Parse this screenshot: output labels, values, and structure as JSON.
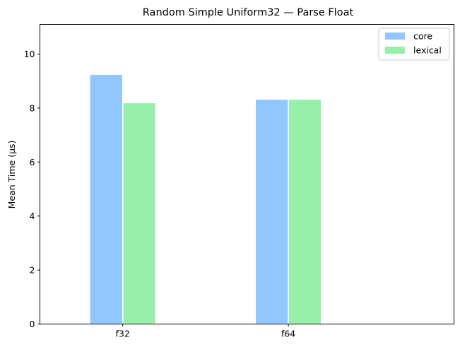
{
  "chart_data": {
    "type": "bar",
    "title": "Random Simple Uniform32 — Parse Float",
    "xlabel": "",
    "ylabel": "Mean Time (µs)",
    "categories": [
      "f32",
      "f64"
    ],
    "series": [
      {
        "name": "core",
        "values": [
          9.25,
          8.33
        ],
        "color": "#92c6ff"
      },
      {
        "name": "lexical",
        "values": [
          8.2,
          8.33
        ],
        "color": "#97f0aa"
      }
    ],
    "ylim": [
      0,
      11.1
    ],
    "yticks": [
      0,
      2,
      4,
      6,
      8,
      10
    ],
    "xlim": [
      -0.5,
      2.0
    ],
    "grid": false,
    "legend_position": "top-right"
  }
}
